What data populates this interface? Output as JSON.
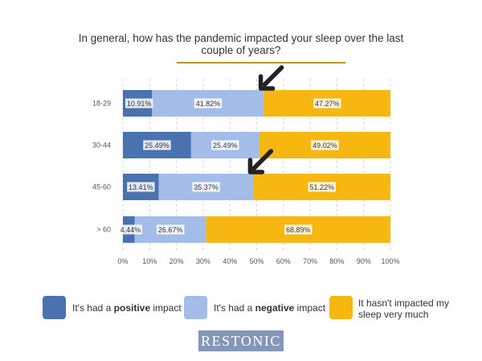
{
  "chart_data": {
    "type": "bar",
    "orientation": "horizontal",
    "stacked": true,
    "title": "In general, how has the pandemic impacted your sleep over the last couple of years?",
    "categories": [
      "18-29",
      "30-44",
      "45-60",
      "> 60"
    ],
    "series": [
      {
        "name": "positive",
        "color": "#4a72b0",
        "values": [
          10.91,
          25.49,
          13.41,
          4.44
        ]
      },
      {
        "name": "negative",
        "color": "#a4bde8",
        "values": [
          41.82,
          25.49,
          35.37,
          26.67
        ]
      },
      {
        "name": "not impacted",
        "color": "#f5b710",
        "values": [
          47.27,
          49.02,
          51.22,
          68.89
        ]
      }
    ],
    "value_labels": [
      [
        "10.91%",
        "41.82%",
        "47.27%"
      ],
      [
        "25.49%",
        "25.49%",
        "49.02%"
      ],
      [
        "13.41%",
        "35.37%",
        "51.22%"
      ],
      [
        "4.44%",
        "26.67%",
        "68.89%"
      ]
    ],
    "xlim": [
      0,
      100
    ],
    "x_ticks": [
      "0%",
      "10%",
      "20%",
      "30%",
      "40%",
      "50%",
      "60%",
      "70%",
      "80%",
      "90%",
      "100%"
    ],
    "grid": "vertical dashed",
    "annotations": [
      {
        "type": "arrow",
        "category": "18-29",
        "points_to_value": 52.73
      },
      {
        "type": "arrow",
        "category": "45-60",
        "points_to_value": 48.78
      }
    ]
  },
  "legend": [
    {
      "color": "#4a72b0",
      "prefix": "It's had a ",
      "bold": "positive",
      "suffix": " impact"
    },
    {
      "color": "#a4bde8",
      "prefix": "It's had a ",
      "bold": "negative",
      "suffix": " impact"
    },
    {
      "color": "#f5b710",
      "prefix": "It hasn't impacted my sleep very much",
      "bold": "",
      "suffix": ""
    }
  ],
  "brand": {
    "logo_text": "RESTONIC",
    "logo_color": "#8597b9"
  }
}
